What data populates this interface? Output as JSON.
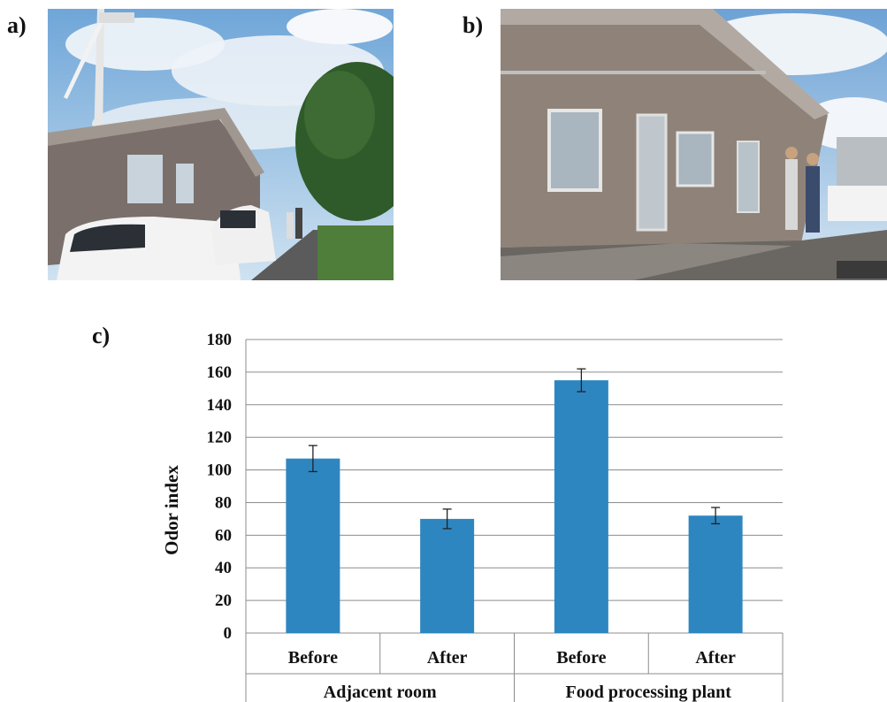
{
  "panels": {
    "a_label": "a)",
    "b_label": "b)",
    "c_label": "c)"
  },
  "photos": {
    "a_description_icon": "photo-building-with-wind-turbine",
    "b_description_icon": "photo-building-exterior-with-workers"
  },
  "chart_data": {
    "type": "bar",
    "categories": [
      "Before",
      "After",
      "Before",
      "After"
    ],
    "groups": [
      "Adjacent room",
      "Food processing plant"
    ],
    "values": [
      107,
      70,
      155,
      72
    ],
    "errors": [
      8,
      6,
      7,
      5
    ],
    "ylabel": "Odor index",
    "xlabel": "",
    "ylim": [
      0,
      180
    ],
    "yticks": [
      0,
      20,
      40,
      60,
      80,
      100,
      120,
      140,
      160,
      180
    ],
    "grid": true,
    "bar_color": "#2e86c1"
  }
}
